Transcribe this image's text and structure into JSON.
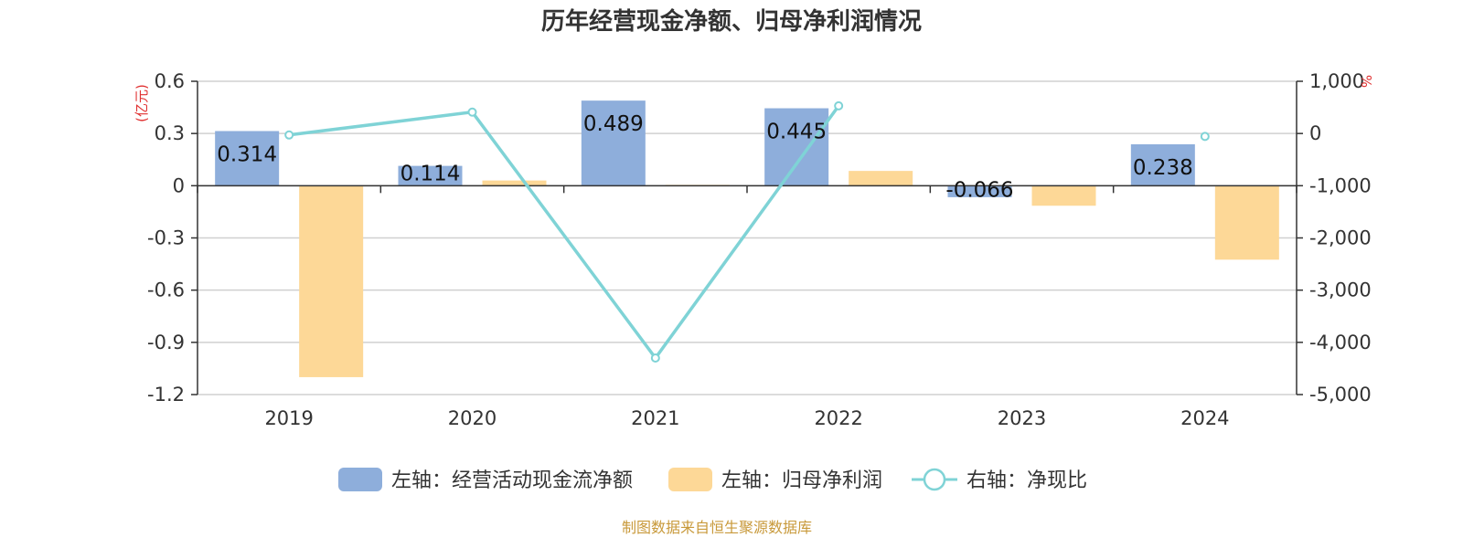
{
  "chart_data": {
    "type": "bar",
    "title": "历年经营现金净额、归母净利润情况",
    "categories": [
      "2019",
      "2020",
      "2021",
      "2022",
      "2023",
      "2024"
    ],
    "series": [
      {
        "name": "左轴：经营活动现金流净额",
        "type": "bar",
        "axis": "left",
        "color": "#8eaedb",
        "values": [
          0.314,
          0.114,
          0.489,
          0.445,
          -0.066,
          0.238
        ],
        "data_labels": [
          "0.314",
          "0.114",
          "0.489",
          "0.445",
          "-0.066",
          "0.238"
        ]
      },
      {
        "name": "左轴：归母净利润",
        "type": "bar",
        "axis": "left",
        "color": "#fdd897",
        "values": [
          -1.1,
          0.03,
          0.005,
          0.085,
          -0.115,
          -0.425
        ]
      },
      {
        "name": "右轴：净现比",
        "type": "line",
        "axis": "right",
        "color": "#7fd3d6",
        "values": [
          -28.5,
          410,
          -4300,
          530,
          null,
          -56
        ]
      }
    ],
    "left_axis": {
      "unit": "(亿元)",
      "ylim": [
        -1.2,
        0.6
      ],
      "ticks": [
        0.6,
        0.3,
        0,
        -0.3,
        -0.6,
        -0.9,
        -1.2
      ],
      "tick_labels": [
        "0.6",
        "0.3",
        "0",
        "-0.3",
        "-0.6",
        "-0.9",
        "-1.2"
      ]
    },
    "right_axis": {
      "unit": "%",
      "ylim": [
        -5000,
        1000
      ],
      "ticks": [
        1000,
        0,
        -1000,
        -2000,
        -3000,
        -4000,
        -5000
      ],
      "tick_labels": [
        "1,000",
        "0",
        "-1,000",
        "-2,000",
        "-3,000",
        "-4,000",
        "-5,000"
      ]
    },
    "grid": true,
    "legend_position": "bottom",
    "unit_color": "#e03030"
  },
  "source": {
    "text": "制图数据来自恒生聚源数据库",
    "color": "#c8993a"
  }
}
